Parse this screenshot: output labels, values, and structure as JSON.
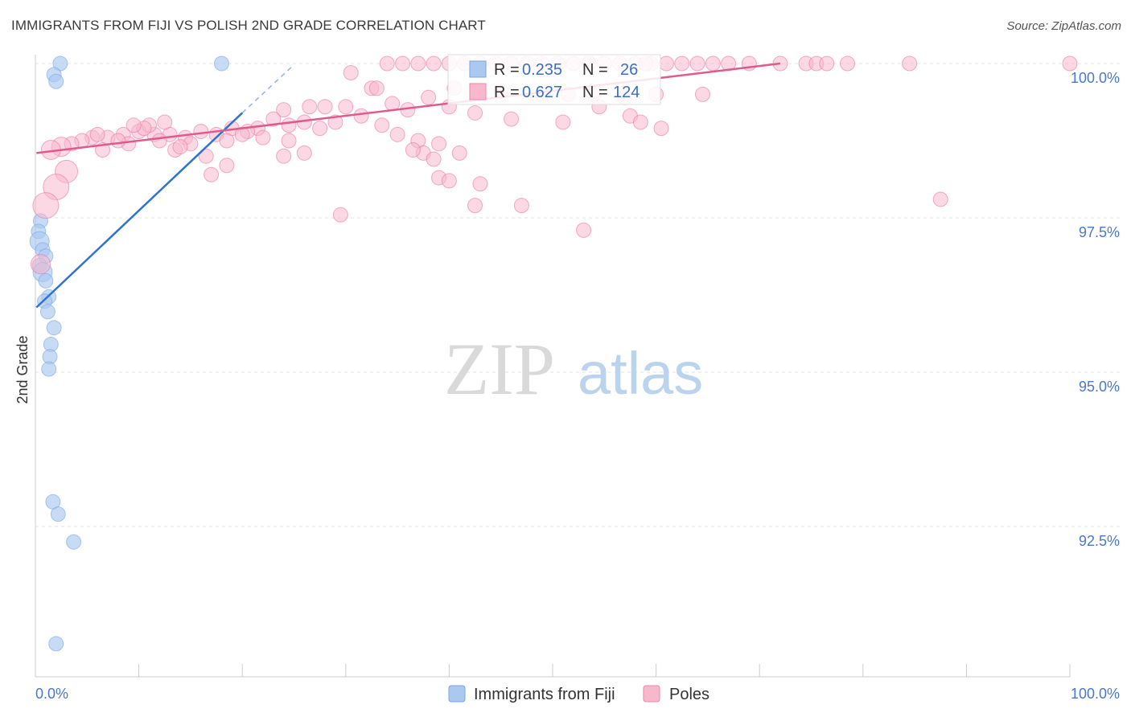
{
  "header": {
    "title": "IMMIGRANTS FROM FIJI VS POLISH 2ND GRADE CORRELATION CHART",
    "source": "Source: ZipAtlas.com"
  },
  "watermark": {
    "zip": "ZIP",
    "atlas": "atlas"
  },
  "stats_legend": {
    "rows": [
      {
        "r_label": "R =",
        "r_value": "0.235",
        "n_label": "N =",
        "n_value": "26",
        "color": "#aac8f0"
      },
      {
        "r_label": "R =",
        "r_value": "0.627",
        "n_label": "N =",
        "n_value": "124",
        "color": "#f7b8cc"
      }
    ]
  },
  "bottom_legend": [
    {
      "label": "Immigrants from Fiji",
      "color": "#aac8f0"
    },
    {
      "label": "Poles",
      "color": "#f7b8cc"
    }
  ],
  "chart_data": {
    "type": "scatter",
    "title": "IMMIGRANTS FROM FIJI VS POLISH 2ND GRADE CORRELATION CHART",
    "xlabel": "",
    "ylabel": "2nd Grade",
    "xlim": [
      0,
      100
    ],
    "ylim": [
      90.2,
      100.3
    ],
    "x_tick_labels": [
      "0.0%",
      "100.0%"
    ],
    "y_ticks": [
      92.5,
      95.0,
      97.5,
      100.0
    ],
    "y_tick_labels": [
      "92.5%",
      "95.0%",
      "97.5%",
      "100.0%"
    ],
    "grid": true,
    "series": [
      {
        "name": "Immigrants from Fiji",
        "color": "#6fa1e0",
        "fill": "#aac8f0",
        "trend": {
          "x": [
            0.1,
            20.0
          ],
          "y": [
            96.05,
            99.2
          ]
        },
        "trend_ext": {
          "x": [
            20.0,
            25.0
          ],
          "y": [
            99.2,
            99.98
          ]
        },
        "points": [
          [
            2.4,
            100.0,
            9
          ],
          [
            18.0,
            100.0,
            9
          ],
          [
            1.8,
            99.82,
            9
          ],
          [
            2.0,
            99.71,
            9
          ],
          [
            0.5,
            97.45,
            9
          ],
          [
            0.3,
            97.28,
            9
          ],
          [
            0.4,
            97.12,
            12
          ],
          [
            0.7,
            96.98,
            9
          ],
          [
            1.0,
            96.88,
            9
          ],
          [
            0.4,
            96.73,
            9
          ],
          [
            0.7,
            96.62,
            12
          ],
          [
            1.0,
            96.48,
            9
          ],
          [
            1.3,
            96.22,
            9
          ],
          [
            0.9,
            96.15,
            9
          ],
          [
            1.2,
            95.98,
            9
          ],
          [
            1.8,
            95.72,
            9
          ],
          [
            1.5,
            95.45,
            9
          ],
          [
            1.4,
            95.25,
            9
          ],
          [
            1.3,
            95.05,
            9
          ],
          [
            1.7,
            92.9,
            9
          ],
          [
            2.2,
            92.7,
            9
          ],
          [
            3.7,
            92.25,
            9
          ],
          [
            2.0,
            90.6,
            9
          ]
        ]
      },
      {
        "name": "Poles",
        "color": "#e8709a",
        "fill": "#f7b8cc",
        "trend": {
          "x": [
            0.1,
            72.0
          ],
          "y": [
            98.55,
            100.0
          ]
        },
        "points": [
          [
            34.0,
            100.0,
            9
          ],
          [
            35.5,
            100.0,
            9
          ],
          [
            37.0,
            100.0,
            9
          ],
          [
            38.5,
            100.0,
            9
          ],
          [
            40.0,
            100.0,
            9
          ],
          [
            41.5,
            100.0,
            9
          ],
          [
            43.0,
            100.0,
            9
          ],
          [
            44.5,
            100.0,
            9
          ],
          [
            46.0,
            100.0,
            9
          ],
          [
            47.5,
            100.0,
            9
          ],
          [
            49.0,
            100.0,
            9
          ],
          [
            50.5,
            100.0,
            9
          ],
          [
            52.0,
            100.0,
            9
          ],
          [
            53.5,
            100.0,
            9
          ],
          [
            55.0,
            100.0,
            9
          ],
          [
            56.5,
            100.0,
            9
          ],
          [
            58.0,
            100.0,
            9
          ],
          [
            59.5,
            100.0,
            9
          ],
          [
            61.0,
            100.0,
            9
          ],
          [
            62.5,
            100.0,
            9
          ],
          [
            64.0,
            100.0,
            9
          ],
          [
            65.5,
            100.0,
            9
          ],
          [
            67.0,
            100.0,
            9
          ],
          [
            69.0,
            100.0,
            9
          ],
          [
            72.0,
            100.0,
            9
          ],
          [
            74.5,
            100.0,
            9
          ],
          [
            75.5,
            100.0,
            9
          ],
          [
            76.5,
            100.0,
            9
          ],
          [
            78.5,
            100.0,
            9
          ],
          [
            84.5,
            100.0,
            9
          ],
          [
            100.0,
            100.0,
            9
          ],
          [
            40.5,
            99.6,
            9
          ],
          [
            45.0,
            99.55,
            9
          ],
          [
            49.0,
            99.5,
            9
          ],
          [
            51.5,
            99.5,
            9
          ],
          [
            54.0,
            99.5,
            9
          ],
          [
            57.0,
            99.45,
            9
          ],
          [
            60.0,
            99.5,
            9
          ],
          [
            30.5,
            99.85,
            9
          ],
          [
            32.5,
            99.6,
            9
          ],
          [
            34.5,
            99.35,
            9
          ],
          [
            36.0,
            99.25,
            9
          ],
          [
            38.0,
            99.45,
            9
          ],
          [
            40.0,
            99.3,
            9
          ],
          [
            42.5,
            99.2,
            9
          ],
          [
            46.0,
            99.1,
            9
          ],
          [
            51.0,
            99.05,
            9
          ],
          [
            54.5,
            99.3,
            9
          ],
          [
            57.5,
            99.15,
            9
          ],
          [
            60.5,
            98.95,
            9
          ],
          [
            30.0,
            99.3,
            9
          ],
          [
            28.0,
            99.3,
            9
          ],
          [
            26.5,
            99.3,
            9
          ],
          [
            24.0,
            99.25,
            9
          ],
          [
            23.0,
            99.1,
            9
          ],
          [
            21.5,
            98.95,
            9
          ],
          [
            20.5,
            98.9,
            9
          ],
          [
            19.0,
            98.95,
            9
          ],
          [
            17.5,
            98.85,
            9
          ],
          [
            16.0,
            98.9,
            9
          ],
          [
            14.5,
            98.8,
            9
          ],
          [
            13.0,
            98.85,
            9
          ],
          [
            11.5,
            98.85,
            9
          ],
          [
            10.0,
            98.9,
            9
          ],
          [
            8.5,
            98.85,
            9
          ],
          [
            7.0,
            98.8,
            9
          ],
          [
            5.5,
            98.8,
            9
          ],
          [
            4.5,
            98.75,
            9
          ],
          [
            3.5,
            98.7,
            9
          ],
          [
            2.5,
            98.65,
            12
          ],
          [
            1.5,
            98.6,
            12
          ],
          [
            9.0,
            98.7,
            9
          ],
          [
            12.0,
            98.75,
            9
          ],
          [
            15.0,
            98.7,
            9
          ],
          [
            18.5,
            98.75,
            9
          ],
          [
            20.0,
            98.85,
            9
          ],
          [
            22.0,
            98.8,
            9
          ],
          [
            24.5,
            99.0,
            9
          ],
          [
            26.0,
            99.05,
            9
          ],
          [
            27.5,
            98.95,
            9
          ],
          [
            29.0,
            99.05,
            9
          ],
          [
            31.5,
            99.15,
            9
          ],
          [
            33.5,
            99.0,
            9
          ],
          [
            35.0,
            98.85,
            9
          ],
          [
            37.0,
            98.75,
            9
          ],
          [
            39.0,
            98.7,
            9
          ],
          [
            41.0,
            98.55,
            9
          ],
          [
            13.5,
            98.6,
            9
          ],
          [
            16.5,
            98.5,
            9
          ],
          [
            24.5,
            98.75,
            9
          ],
          [
            24.0,
            98.5,
            9
          ],
          [
            26.0,
            98.55,
            9
          ],
          [
            37.5,
            98.55,
            9
          ],
          [
            38.5,
            98.45,
            9
          ],
          [
            14.0,
            98.65,
            9
          ],
          [
            11.0,
            99.0,
            9
          ],
          [
            12.5,
            99.05,
            9
          ],
          [
            10.5,
            98.95,
            9
          ],
          [
            9.5,
            99.0,
            9
          ],
          [
            8.0,
            98.75,
            9
          ],
          [
            6.5,
            98.6,
            9
          ],
          [
            6.0,
            98.85,
            9
          ],
          [
            17.0,
            98.2,
            9
          ],
          [
            18.5,
            98.35,
            9
          ],
          [
            36.5,
            98.6,
            9
          ],
          [
            39.0,
            98.15,
            9
          ],
          [
            40.0,
            98.1,
            9
          ],
          [
            43.0,
            98.05,
            9
          ],
          [
            42.5,
            97.7,
            9
          ],
          [
            47.0,
            97.7,
            9
          ],
          [
            53.0,
            97.3,
            9
          ],
          [
            58.5,
            99.05,
            9
          ],
          [
            87.5,
            97.8,
            9
          ],
          [
            29.5,
            97.55,
            9
          ],
          [
            3.0,
            98.25,
            14
          ],
          [
            2.0,
            98.0,
            16
          ],
          [
            1.0,
            97.7,
            16
          ],
          [
            0.5,
            96.75,
            12
          ],
          [
            59.0,
            100.0,
            9
          ],
          [
            64.5,
            99.5,
            9
          ],
          [
            33.0,
            99.6,
            9
          ]
        ]
      }
    ]
  }
}
